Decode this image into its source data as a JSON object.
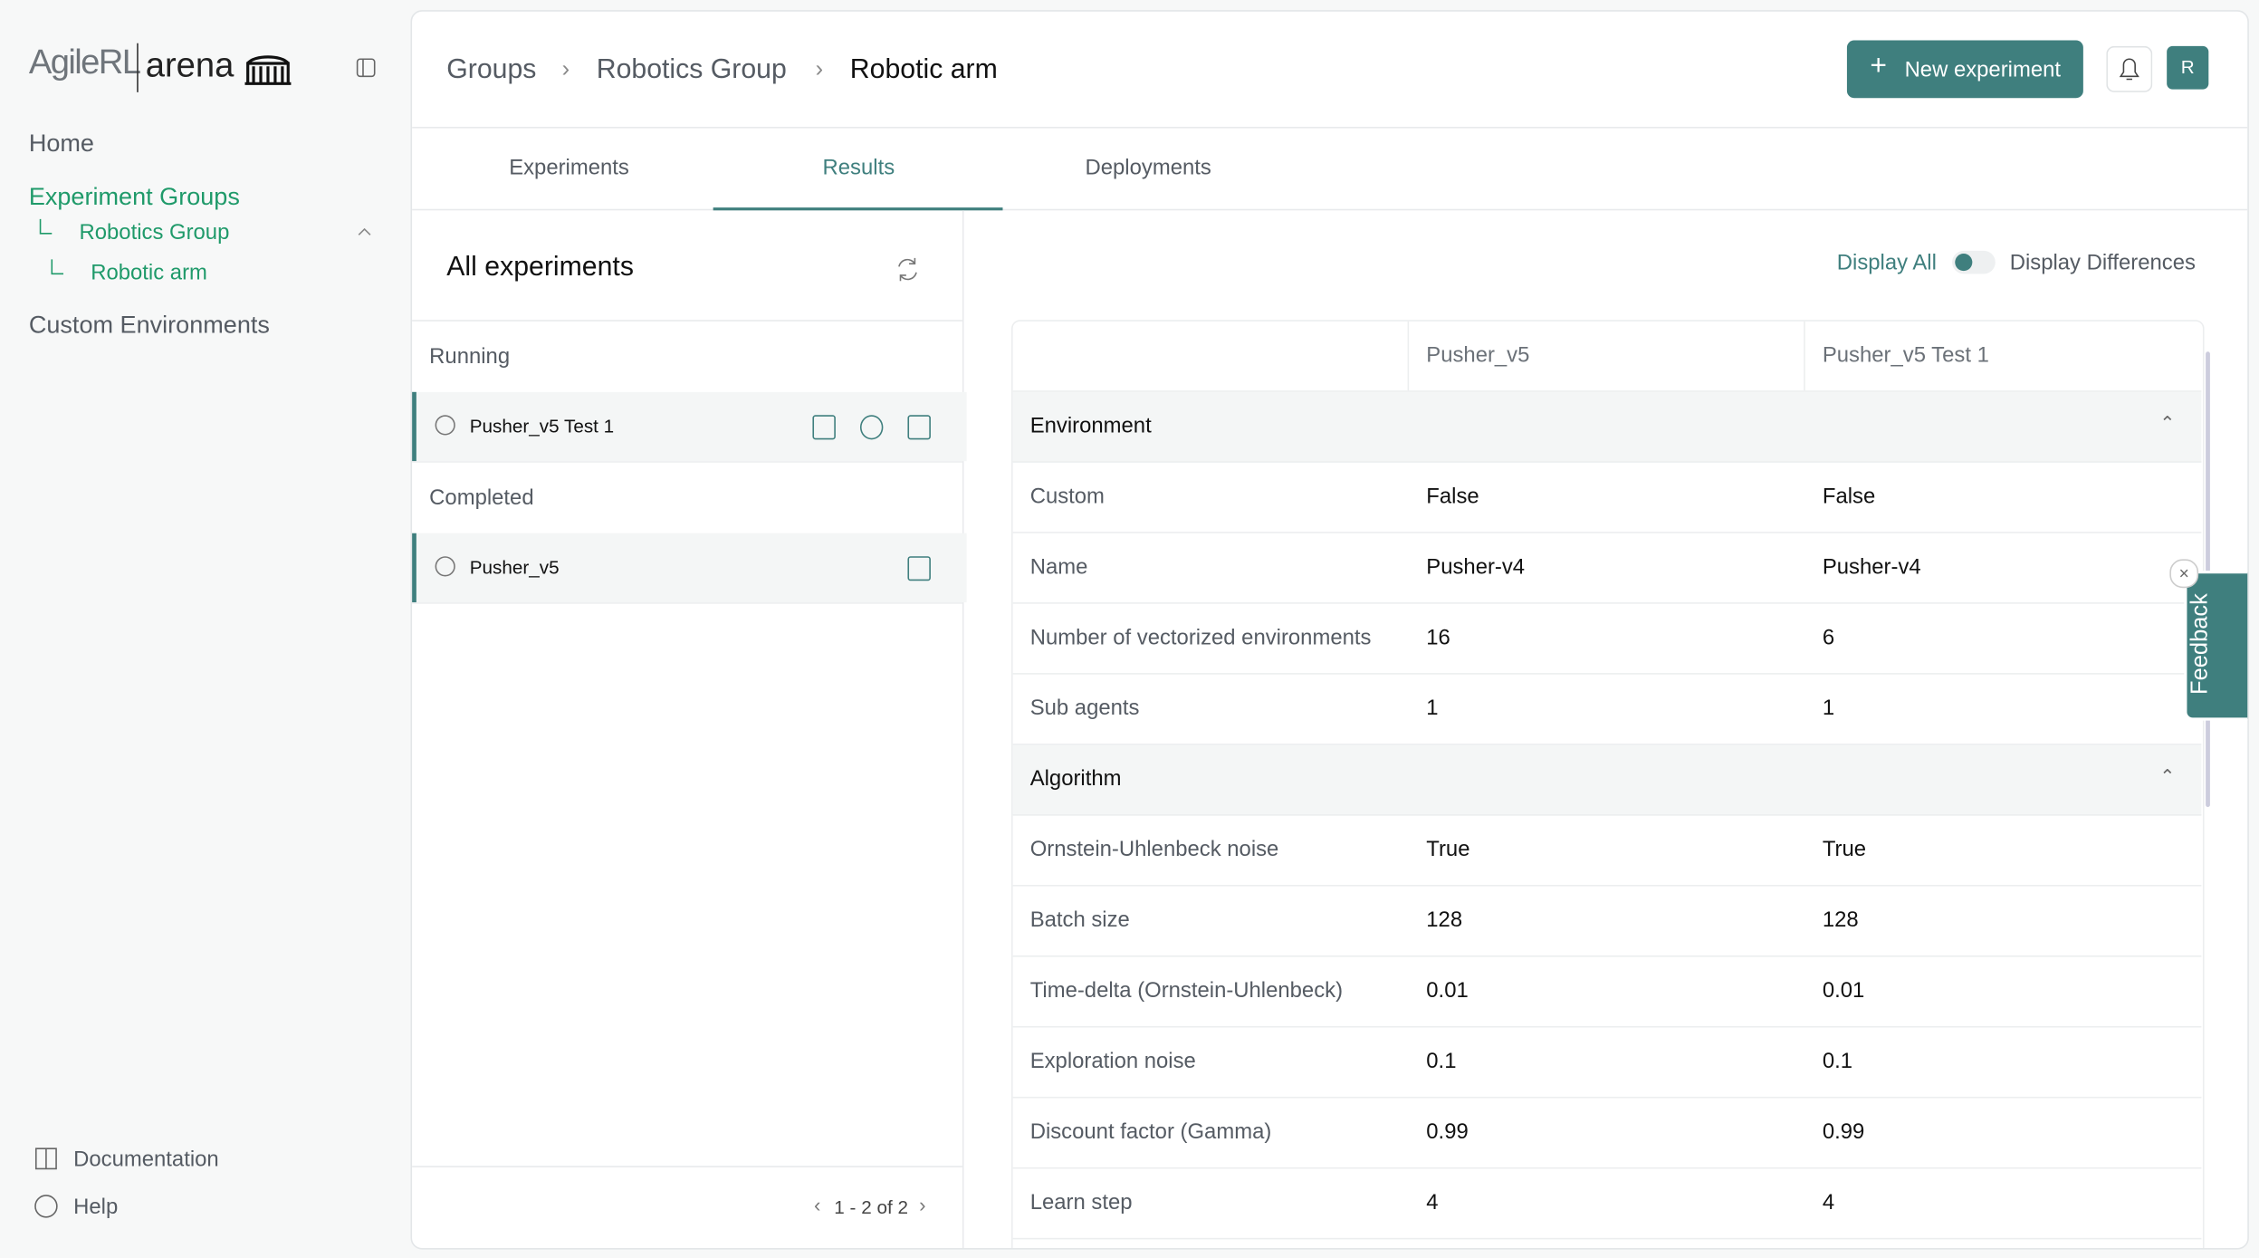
{
  "sidebar": {
    "logo_brand": "AgileRL",
    "logo_product": "arena",
    "nav": [
      "Home",
      "Experiment Groups",
      "Robotics Group",
      "Robotic arm",
      "Custom Environments"
    ],
    "footer": [
      "Documentation",
      "Help"
    ]
  },
  "header": {
    "breadcrumb": [
      "Groups",
      "Robotics Group",
      "Robotic arm"
    ],
    "button": "New experiment",
    "avatar": "R"
  },
  "tabs": [
    "Experiments",
    "Results",
    "Deployments"
  ],
  "experiments": {
    "title": "All experiments",
    "sections": [
      {
        "label": "Running",
        "items": [
          "Pusher_v5 Test 1"
        ]
      },
      {
        "label": "Completed",
        "items": [
          "Pusher_v5"
        ]
      }
    ],
    "pagination": "1 - 2 of 2"
  },
  "toggle": {
    "left": "Display All",
    "right": "Display Differences"
  },
  "table": {
    "columns": [
      "Pusher_v5",
      "Pusher_v5 Test 1"
    ],
    "groups": [
      {
        "name": "Environment",
        "rows": [
          [
            "Custom",
            "False",
            "False"
          ],
          [
            "Name",
            "Pusher-v4",
            "Pusher-v4"
          ],
          [
            "Number of vectorized environments",
            "16",
            "6"
          ],
          [
            "Sub agents",
            "1",
            "1"
          ]
        ]
      },
      {
        "name": "Algorithm",
        "rows": [
          [
            "Ornstein-Uhlenbeck noise",
            "True",
            "True"
          ],
          [
            "Batch size",
            "128",
            "128"
          ],
          [
            "Time-delta (Ornstein-Uhlenbeck)",
            "0.01",
            "0.01"
          ],
          [
            "Exploration noise",
            "0.1",
            "0.1"
          ],
          [
            "Discount factor (Gamma)",
            "0.99",
            "0.99"
          ],
          [
            "Learn step",
            "4",
            "4"
          ]
        ]
      }
    ]
  },
  "feedback": "Feedback"
}
